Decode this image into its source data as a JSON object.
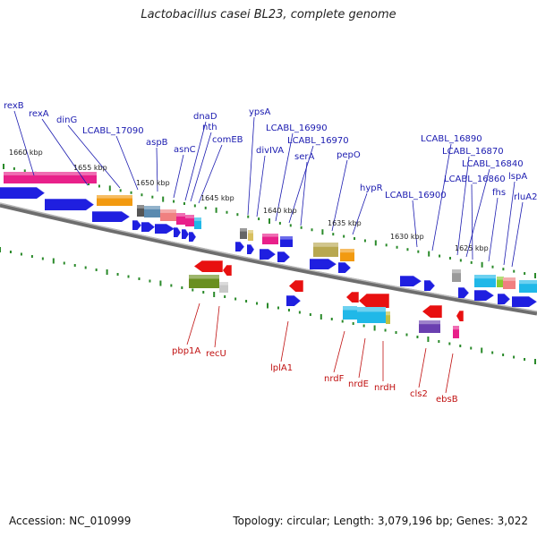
{
  "title": "Lactobacillus casei BL23, complete genome",
  "footer": {
    "accession": "Accession: NC_010999",
    "summary": "Topology: circular; Length: 3,079,196 bp; Genes: 3,022"
  },
  "colors": {
    "backbone": "#8a8a8a",
    "tick": "#2a8a2a",
    "label_top": "#1b1bb0",
    "label_bottom": "#c01010",
    "cds_blue": "#1f1fe0",
    "magenta": "#e8208a",
    "orange": "#f29a10",
    "red": "#e81010",
    "olive": "#6a8f20",
    "cyan": "#20b8e8",
    "khaki": "#b8a850",
    "grey": "#9a9a9a",
    "purple": "#6a3fb0",
    "pink": "#f08080"
  },
  "kbp_labels": [
    "1660 kbp",
    "1655 kbp",
    "1650 kbp",
    "1645 kbp",
    "1640 kbp",
    "1635 kbp",
    "1630 kbp",
    "1625 kbp"
  ],
  "top_labels": [
    "rexB",
    "rexA",
    "dinG",
    "LCABL_17090",
    "aspB",
    "asnC",
    "dnaD",
    "nth",
    "comEB",
    "ypsA",
    "divIVA",
    "LCABL_16990",
    "LCABL_16970",
    "serA",
    "pepO",
    "hypR",
    "LCABL_16900",
    "LCABL_16890",
    "LCABL_16870",
    "LCABL_16840",
    "LCABL_16860",
    "fhs",
    "lspA",
    "rluA2"
  ],
  "bottom_labels": [
    "pbp1A",
    "recU",
    "lplA1",
    "nrdF",
    "nrdE",
    "nrdH",
    "cls2",
    "ebsB"
  ]
}
